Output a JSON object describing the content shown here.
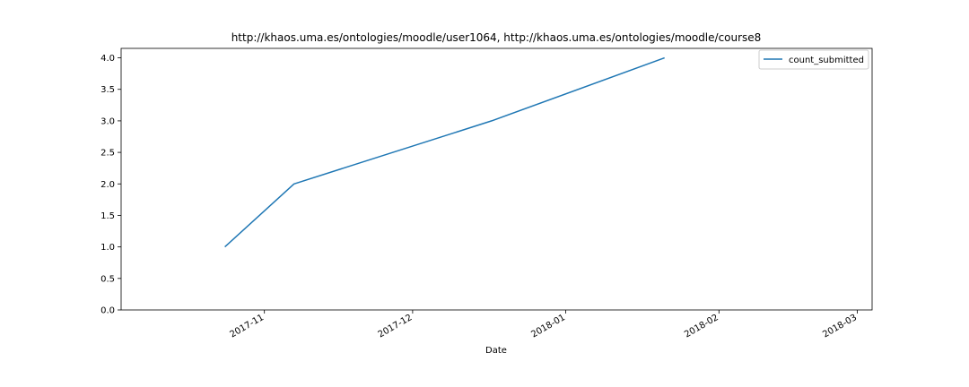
{
  "chart_data": {
    "type": "line",
    "title": "http://khaos.uma.es/ontologies/moodle/user1064, http://khaos.uma.es/ontologies/moodle/course8",
    "xlabel": "Date",
    "ylabel": "",
    "xlim": [
      "2017-10-03",
      "2018-03-04"
    ],
    "ylim": [
      0,
      4.15
    ],
    "x_ticks": [
      {
        "date": "2017-11-01",
        "label": "2017-11"
      },
      {
        "date": "2017-12-01",
        "label": "2017-12"
      },
      {
        "date": "2018-01-01",
        "label": "2018-01"
      },
      {
        "date": "2018-02-01",
        "label": "2018-02"
      },
      {
        "date": "2018-03-01",
        "label": "2018-03"
      }
    ],
    "y_ticks": [
      {
        "value": 0.0,
        "label": "0.0"
      },
      {
        "value": 0.5,
        "label": "0.5"
      },
      {
        "value": 1.0,
        "label": "1.0"
      },
      {
        "value": 1.5,
        "label": "1.5"
      },
      {
        "value": 2.0,
        "label": "2.0"
      },
      {
        "value": 2.5,
        "label": "2.5"
      },
      {
        "value": 3.0,
        "label": "3.0"
      },
      {
        "value": 3.5,
        "label": "3.5"
      },
      {
        "value": 4.0,
        "label": "4.0"
      }
    ],
    "series": [
      {
        "name": "count_submitted",
        "color": "#1f77b4",
        "x": [
          "2017-10-24",
          "2017-11-07",
          "2017-12-17",
          "2018-01-21"
        ],
        "y": [
          1,
          2,
          3,
          4
        ]
      }
    ],
    "legend": {
      "position": "top-right",
      "entries": [
        "count_submitted"
      ]
    },
    "grid": false
  }
}
